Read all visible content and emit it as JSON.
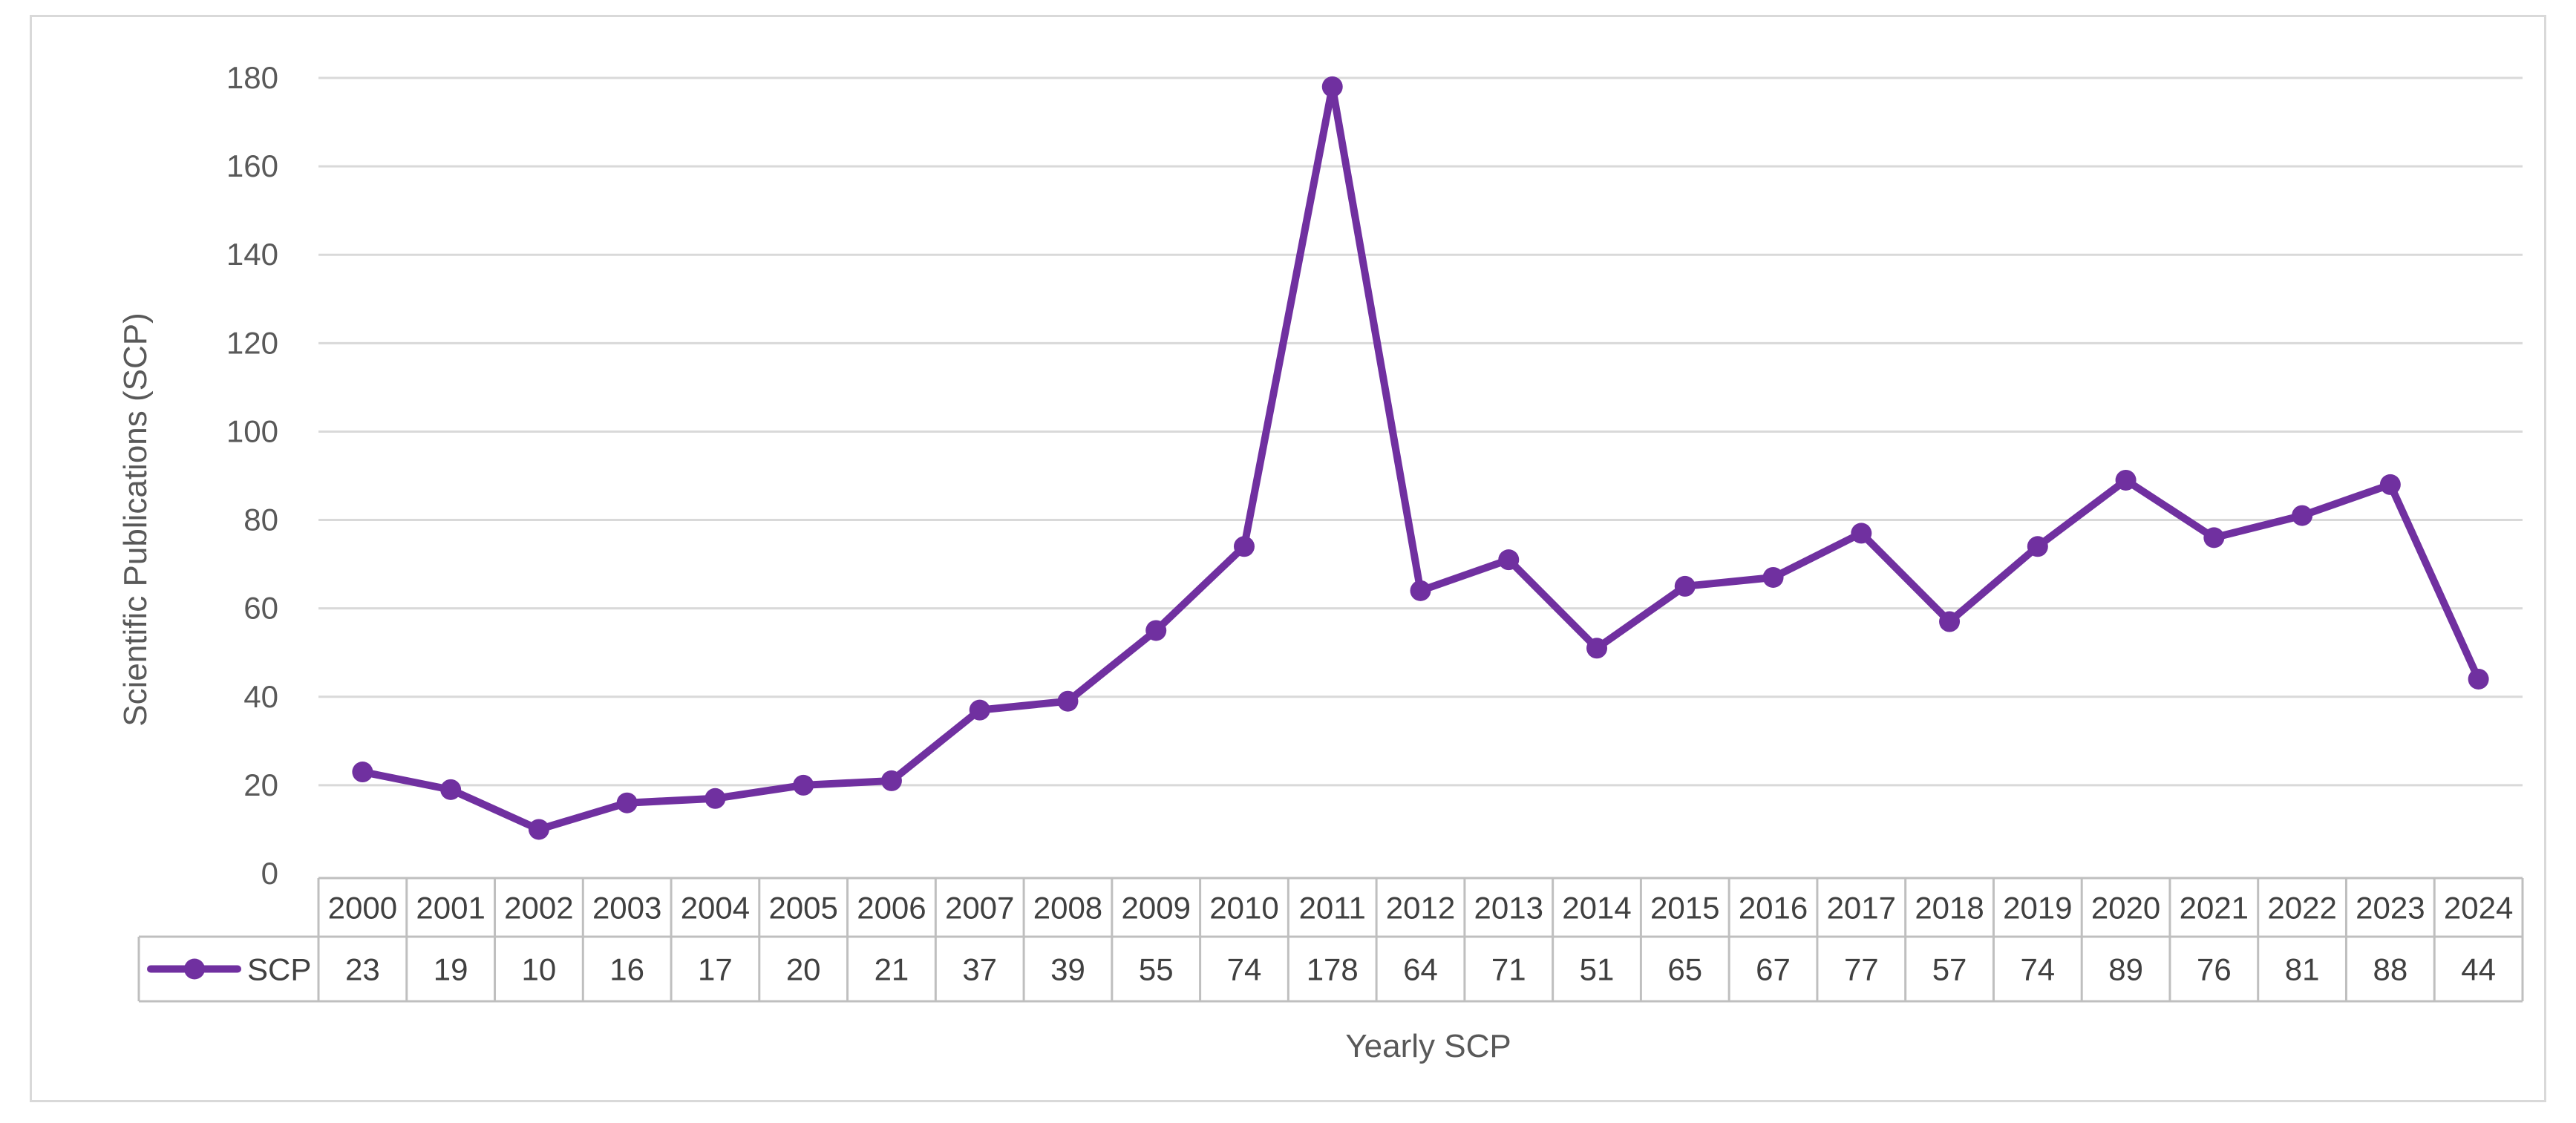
{
  "chart_data": {
    "type": "line",
    "categories": [
      "2000",
      "2001",
      "2002",
      "2003",
      "2004",
      "2005",
      "2006",
      "2007",
      "2008",
      "2009",
      "2010",
      "2011",
      "2012",
      "2013",
      "2014",
      "2015",
      "2016",
      "2017",
      "2018",
      "2019",
      "2020",
      "2021",
      "2022",
      "2023",
      "2024"
    ],
    "series": [
      {
        "name": "SCP",
        "values": [
          23,
          19,
          10,
          16,
          17,
          20,
          21,
          37,
          39,
          55,
          74,
          178,
          64,
          71,
          51,
          65,
          67,
          77,
          57,
          74,
          89,
          76,
          81,
          88,
          44
        ]
      }
    ],
    "xlabel": "Yearly SCP",
    "ylabel": "Scientific Publications  (SCP)",
    "ylim": [
      0,
      180
    ],
    "yticks": [
      0,
      20,
      40,
      60,
      80,
      100,
      120,
      140,
      160,
      180
    ],
    "grid": true,
    "legend": "data-table",
    "colors": {
      "series": "#7030a0",
      "grid": "#d9d9d9",
      "table_border": "#bfbfbf"
    }
  }
}
